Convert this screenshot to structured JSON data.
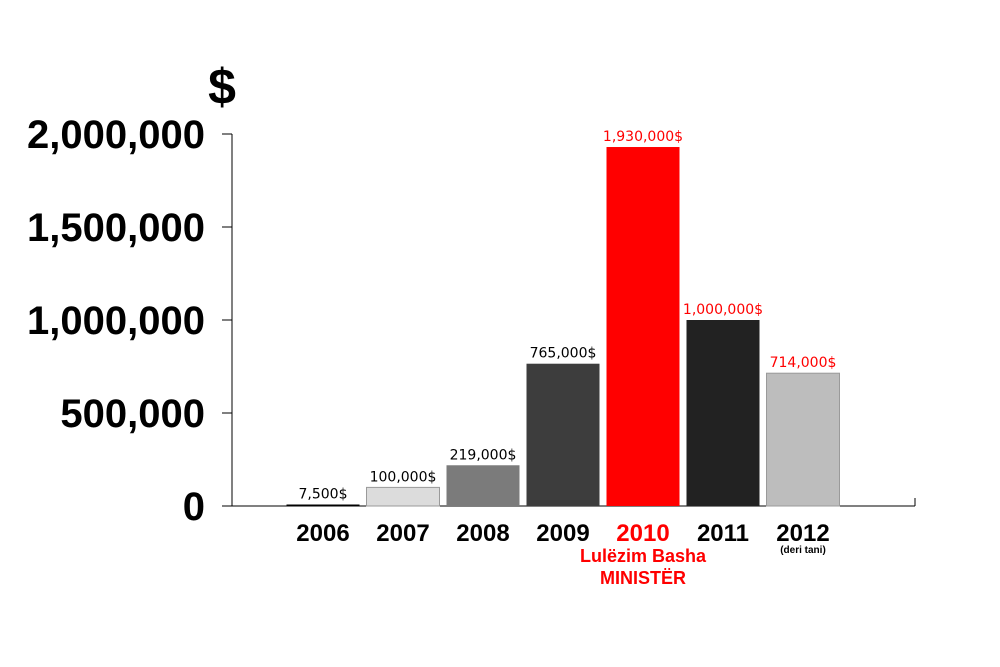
{
  "chart_data": {
    "type": "bar",
    "ylabel": "$",
    "ylim": [
      0,
      2000000
    ],
    "yticks": [
      0,
      500000,
      1000000,
      1500000,
      2000000
    ],
    "ytick_labels": [
      "0",
      "500,000",
      "1,000,000",
      "1,500,000",
      "2,000,000"
    ],
    "grid": false,
    "categories": [
      "2006",
      "2007",
      "2008",
      "2009",
      "2010",
      "2011",
      "2012"
    ],
    "values": [
      7500,
      100000,
      219000,
      765000,
      1930000,
      1000000,
      714000
    ],
    "value_labels": [
      "7,500$",
      "100,000$",
      "219,000$",
      "765,000$",
      "1,930,000$",
      "1,000,000$",
      "714,000$"
    ],
    "bar_colors": [
      "#000000",
      "#dcdcdc",
      "#7b7b7b",
      "#3d3d3d",
      "#ff0000",
      "#222222",
      "#bdbdbd"
    ],
    "value_label_colors": [
      "#000000",
      "#000000",
      "#000000",
      "#000000",
      "#ff0000",
      "#ff0000",
      "#ff0000"
    ],
    "category_label_colors": [
      "#000000",
      "#000000",
      "#000000",
      "#000000",
      "#ff0000",
      "#000000",
      "#000000"
    ],
    "category_notes": [
      "",
      "",
      "",
      "",
      "",
      "",
      "(deri tani)"
    ],
    "annotation": {
      "category": "2010",
      "lines": [
        "Lulëzim Basha",
        "MINISTËR"
      ],
      "color": "#ff0000"
    }
  }
}
